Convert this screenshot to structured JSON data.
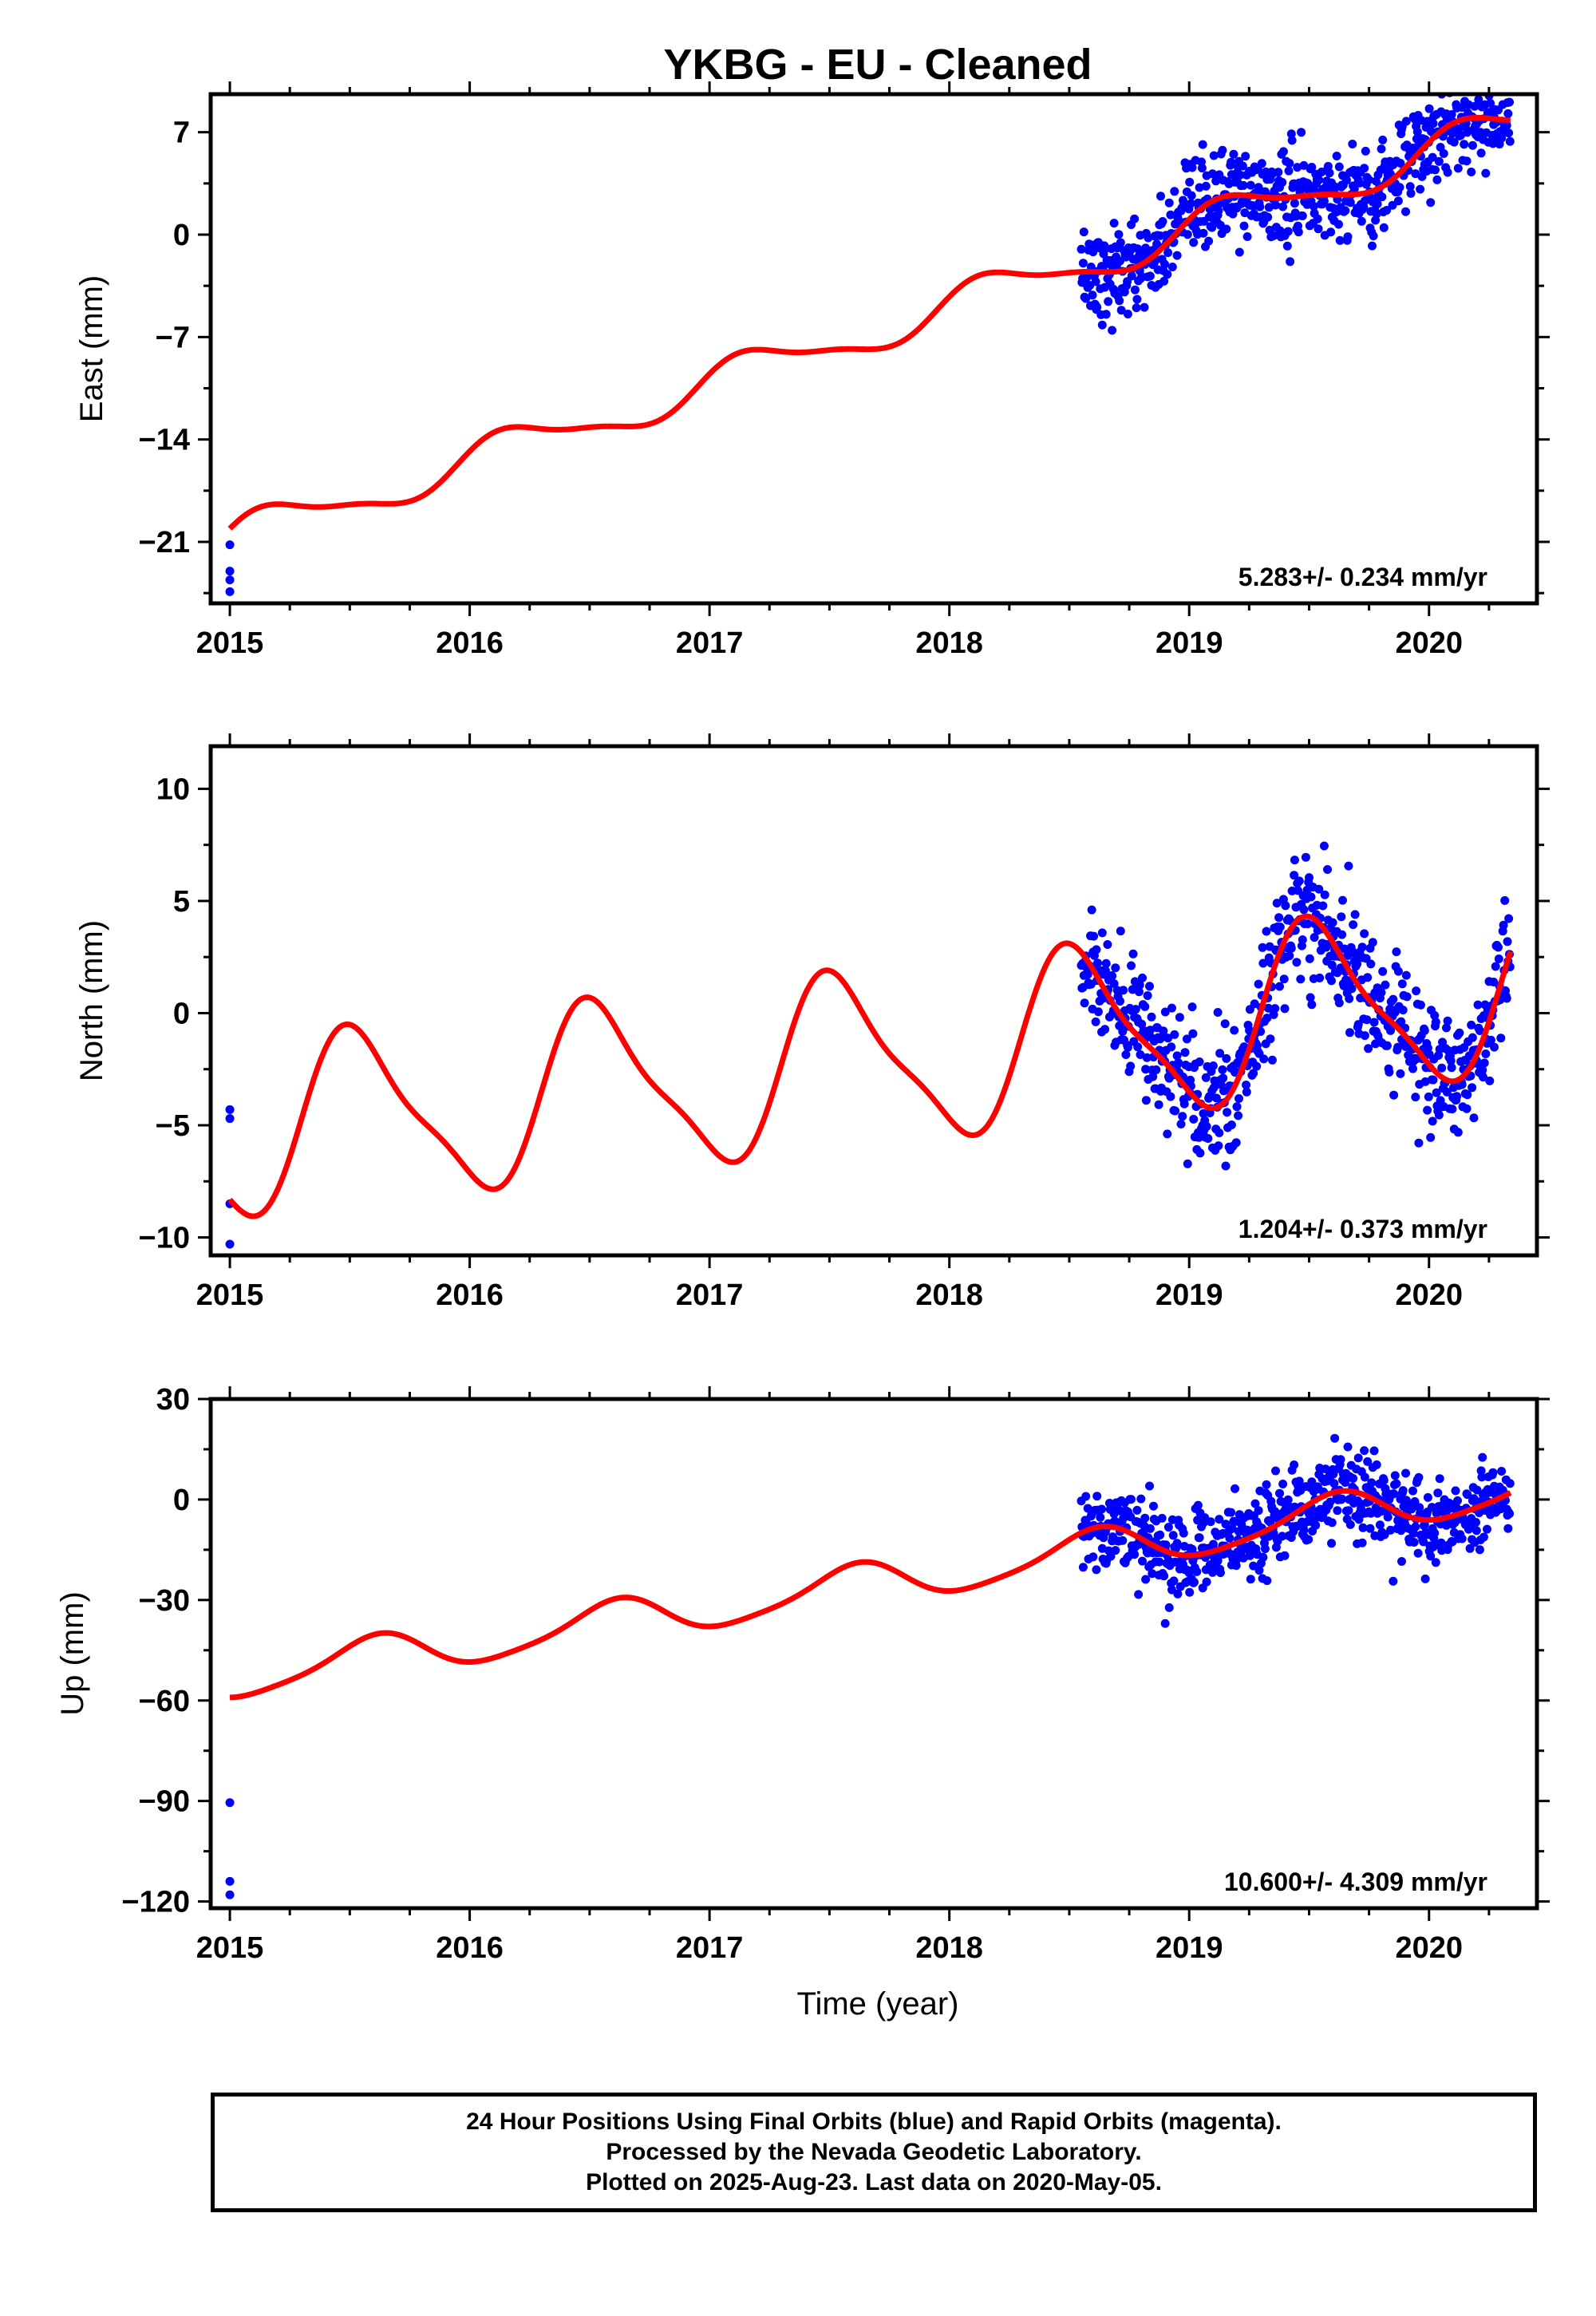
{
  "title": "YKBG  - EU - Cleaned",
  "xlabel": "Time (year)",
  "colors": {
    "data": "#0000ff",
    "model": "#ff0000",
    "axis": "#000000"
  },
  "footer": {
    "line1": "24 Hour Positions Using Final Orbits (blue) and Rapid Orbits (magenta).",
    "line2": "Processed by the Nevada Geodetic Laboratory.",
    "line3": "Plotted on 2025-Aug-23. Last data on 2020-May-05."
  },
  "chart_data": [
    {
      "type": "scatter",
      "component": "east",
      "ylabel": "East (mm)",
      "rate": "5.283+/- 0.234 mm/yr",
      "xlim": [
        2014.92,
        2020.45
      ],
      "ylim": [
        -25.2,
        9.6
      ],
      "yticks": [
        7,
        0,
        -7,
        -14,
        -21
      ],
      "xticks": [
        2015,
        2016,
        2017,
        2018,
        2019,
        2020
      ],
      "model": {
        "offset": -2.3,
        "rate": 5.283,
        "sin_amp": 1.2,
        "cos_amp": 0.5,
        "sin2_amp": 0.3,
        "cos2_amp": 0.2,
        "ref_year": 2018.5
      },
      "points": [
        [
          2015.0,
          -21.2
        ],
        [
          2015.0,
          -23.0
        ],
        [
          2015.0,
          -24.4
        ],
        [
          2015.0,
          -23.6
        ]
      ],
      "dense": {
        "start": 2018.55,
        "end": 2020.34,
        "scatter": 1.6
      }
    },
    {
      "type": "scatter",
      "component": "north",
      "ylabel": "North (mm)",
      "rate": "1.204+/- 0.373 mm/yr",
      "xlim": [
        2014.92,
        2020.45
      ],
      "ylim": [
        -10.8,
        11.9
      ],
      "yticks": [
        10,
        5,
        0,
        -5,
        -10
      ],
      "xticks": [
        2015,
        2016,
        2017,
        2018,
        2019,
        2020
      ],
      "model": {
        "offset": -1.1,
        "rate": 1.204,
        "sin_amp": -0.8,
        "cos_amp": -3.6,
        "sin2_amp": -0.7,
        "cos2_amp": 0.6,
        "ref_year": 2018.5
      },
      "points": [
        [
          2015.0,
          -4.3
        ],
        [
          2015.0,
          -4.7
        ],
        [
          2015.0,
          -8.5
        ],
        [
          2015.0,
          -10.3
        ]
      ],
      "dense": {
        "start": 2018.55,
        "end": 2020.34,
        "scatter": 1.5
      }
    },
    {
      "type": "scatter",
      "component": "up",
      "ylabel": "Up (mm)",
      "rate": "10.600+/- 4.309 mm/yr",
      "xlim": [
        2014.92,
        2020.45
      ],
      "ylim": [
        -122,
        30
      ],
      "yticks": [
        30,
        0,
        -30,
        -60,
        -90,
        -120
      ],
      "xticks": [
        2015,
        2016,
        2017,
        2018,
        2019,
        2020
      ],
      "model": {
        "offset": -16.5,
        "rate": 10.6,
        "sin_amp": -3.5,
        "cos_amp": -5.0,
        "sin2_amp": 1.0,
        "cos2_amp": -0.5,
        "ref_year": 2018.5
      },
      "points": [
        [
          2015.0,
          -90.5
        ],
        [
          2015.0,
          -114.0
        ],
        [
          2015.0,
          -118.0
        ],
        [
          2018.9,
          -37.0
        ]
      ],
      "dense": {
        "start": 2018.55,
        "end": 2020.34,
        "scatter": 6.0
      }
    }
  ]
}
